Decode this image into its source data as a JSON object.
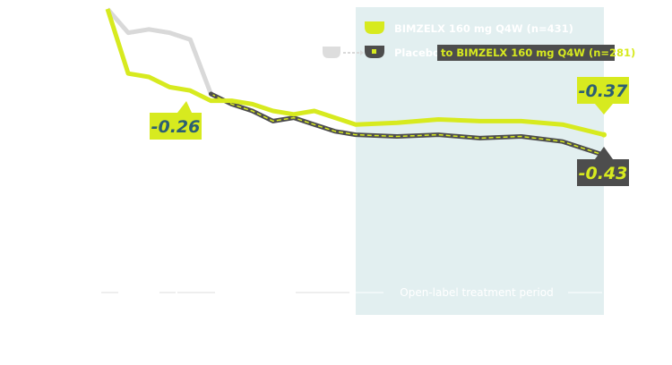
{
  "chart_data": {
    "type": "line",
    "x": [
      0,
      2,
      4,
      6,
      8,
      10,
      12,
      14,
      16,
      18,
      20,
      22,
      24,
      28,
      32,
      36,
      40,
      44,
      48
    ],
    "series": [
      {
        "name": "BIMZELX 160 mg Q4W (n=431)",
        "color": "#d7ea1f",
        "values": [
          0,
          -0.19,
          -0.2,
          -0.23,
          -0.24,
          -0.27,
          -0.27,
          -0.28,
          -0.3,
          -0.31,
          -0.3,
          -0.32,
          -0.34,
          -0.335,
          -0.325,
          -0.33,
          -0.33,
          -0.34,
          -0.37
        ]
      },
      {
        "name_prefix": "Placebo",
        "name_suffix": "to BIMZELX 160 mg Q4W (n=281)",
        "color": "#4d4d4d",
        "dash_color": "#d7ea1f",
        "values": [
          0,
          -0.07,
          -0.06,
          -0.07,
          -0.09,
          -0.25,
          -0.28,
          -0.3,
          -0.33,
          -0.32,
          -0.34,
          -0.36,
          -0.37,
          -0.375,
          -0.37,
          -0.38,
          -0.375,
          -0.39,
          -0.43
        ]
      }
    ],
    "callouts": [
      {
        "series": 1,
        "text": "-0.26"
      },
      {
        "series": 0,
        "text": "-0.37"
      },
      {
        "series": 1,
        "text": "-0.43"
      }
    ],
    "shaded_period": {
      "from": 24,
      "to": 48,
      "label": "Open-label treatment period"
    },
    "xlim": [
      0,
      48
    ],
    "ylim": [
      -1.0,
      0
    ]
  },
  "colors": {
    "bimzelx": "#d7ea1f",
    "placebo": "#4d4d4d",
    "placebo_pre_switch": "#d9d9d9",
    "shade": "#e2eff0",
    "callout_text": "#2c5f73"
  }
}
